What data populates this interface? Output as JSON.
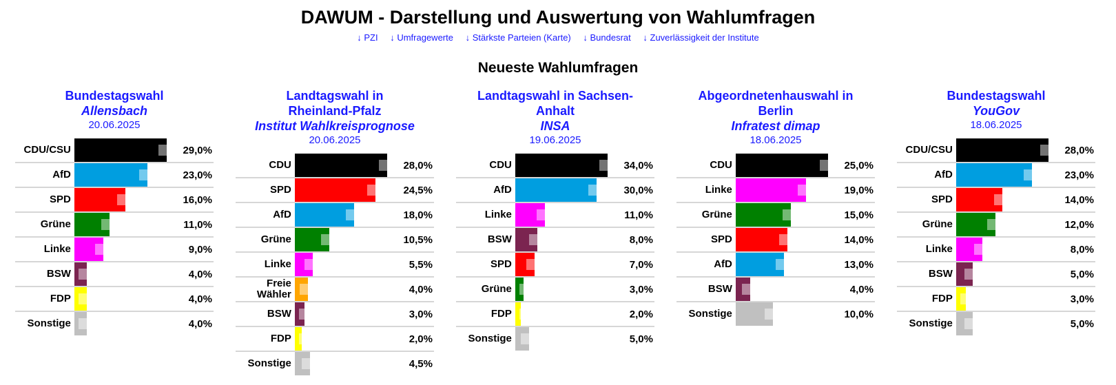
{
  "header": {
    "title": "DAWUM - Darstellung und Auswertung von Wahlumfragen",
    "nav": [
      "↓ PZI",
      "↓ Umfragewerte",
      "↓ Stärkste Parteien (Karte)",
      "↓ Bundesrat",
      "↓ Zuverlässigkeit der Institute"
    ],
    "section_title": "Neueste Wahlumfragen"
  },
  "colors": {
    "link": "#1a1aff",
    "CDU/CSU": "#000000",
    "CDU": "#000000",
    "AfD": "#009ee0",
    "SPD": "#ff0000",
    "Grüne": "#008000",
    "Linke": "#ff00ff",
    "BSW": "#7b2450",
    "FDP": "#ffff00",
    "Freie Wähler": "#ffa500",
    "Sonstige": "#c0c0c0"
  },
  "chart_data": [
    {
      "type": "bar",
      "title": "Bundestagswahl",
      "institute": "Allensbach",
      "date": "20.06.2025",
      "categories": [
        "CDU/CSU",
        "AfD",
        "SPD",
        "Grüne",
        "Linke",
        "BSW",
        "FDP",
        "Sonstige"
      ],
      "values": [
        29.0,
        23.0,
        16.0,
        11.0,
        9.0,
        4.0,
        4.0,
        4.0
      ],
      "labels": [
        "29,0%",
        "23,0%",
        "16,0%",
        "11,0%",
        "9,0%",
        "4,0%",
        "4,0%",
        "4,0%"
      ]
    },
    {
      "type": "bar",
      "title": "Landtagswahl in Rheinland-Pfalz",
      "institute": "Institut Wahlkreisprognose",
      "date": "20.06.2025",
      "categories": [
        "CDU",
        "SPD",
        "AfD",
        "Grüne",
        "Linke",
        "Freie Wähler",
        "BSW",
        "FDP",
        "Sonstige"
      ],
      "values": [
        28.0,
        24.5,
        18.0,
        10.5,
        5.5,
        4.0,
        3.0,
        2.0,
        4.5
      ],
      "labels": [
        "28,0%",
        "24,5%",
        "18,0%",
        "10,5%",
        "5,5%",
        "4,0%",
        "3,0%",
        "2,0%",
        "4,5%"
      ]
    },
    {
      "type": "bar",
      "title": "Landtagswahl in Sachsen-Anhalt",
      "institute": "INSA",
      "date": "19.06.2025",
      "categories": [
        "CDU",
        "AfD",
        "Linke",
        "BSW",
        "SPD",
        "Grüne",
        "FDP",
        "Sonstige"
      ],
      "values": [
        34.0,
        30.0,
        11.0,
        8.0,
        7.0,
        3.0,
        2.0,
        5.0
      ],
      "labels": [
        "34,0%",
        "30,0%",
        "11,0%",
        "8,0%",
        "7,0%",
        "3,0%",
        "2,0%",
        "5,0%"
      ]
    },
    {
      "type": "bar",
      "title": "Abgeordnetenhauswahl in Berlin",
      "institute": "Infratest dimap",
      "date": "18.06.2025",
      "categories": [
        "CDU",
        "Linke",
        "Grüne",
        "SPD",
        "AfD",
        "BSW",
        "Sonstige"
      ],
      "values": [
        25.0,
        19.0,
        15.0,
        14.0,
        13.0,
        4.0,
        10.0
      ],
      "labels": [
        "25,0%",
        "19,0%",
        "15,0%",
        "14,0%",
        "13,0%",
        "4,0%",
        "10,0%"
      ]
    },
    {
      "type": "bar",
      "title": "Bundestagswahl",
      "institute": "YouGov",
      "date": "18.06.2025",
      "categories": [
        "CDU/CSU",
        "AfD",
        "SPD",
        "Grüne",
        "Linke",
        "BSW",
        "FDP",
        "Sonstige"
      ],
      "values": [
        28.0,
        23.0,
        14.0,
        12.0,
        8.0,
        5.0,
        3.0,
        5.0
      ],
      "labels": [
        "28,0%",
        "23,0%",
        "14,0%",
        "12,0%",
        "8,0%",
        "5,0%",
        "3,0%",
        "5,0%"
      ]
    }
  ]
}
